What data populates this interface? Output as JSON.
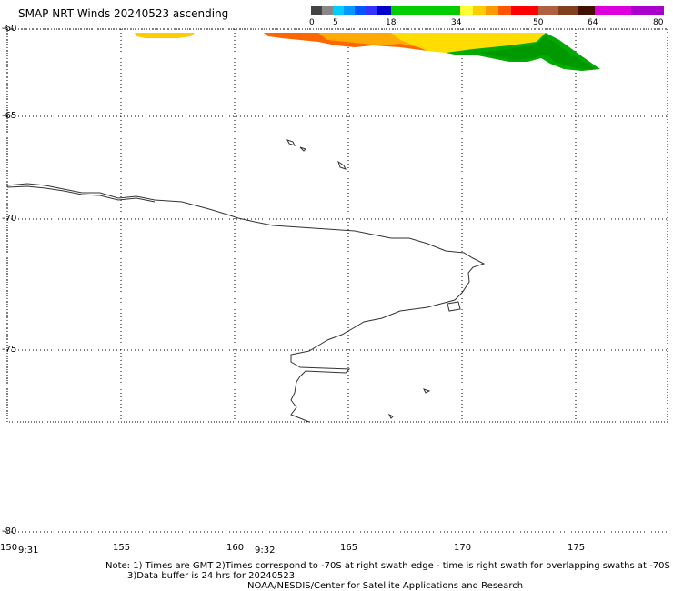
{
  "title": "SMAP NRT Winds 20240523 ascending",
  "colorbar": {
    "ticks": [
      "0",
      "5",
      "18",
      "34",
      "50",
      "64",
      "80"
    ]
  },
  "lat_labels": [
    "-60",
    "-65",
    "-70",
    "-75",
    "-80"
  ],
  "lon_labels": [
    "150",
    "155",
    "160",
    "165",
    "170",
    "175"
  ],
  "time_labels": [
    "9:31",
    "9:32"
  ],
  "notes": {
    "line1": "Note: 1) Times are GMT 2)Times correspond to -70S at right swath edge - time is right swath for overlapping swaths at -70S",
    "line2": "3)Data buffer is 24 hrs for 20240523",
    "line3": "NOAA/NESDIS/Center for Satellite Applications and Research"
  },
  "colors": {
    "wind_0_5": "#555555",
    "wind_5_18": "#00a0ff",
    "wind_18_34": "#00cc00",
    "wind_34_50": "#ffcc00",
    "wind_50_64": "#a06040",
    "wind_64_80": "#cc00cc"
  }
}
